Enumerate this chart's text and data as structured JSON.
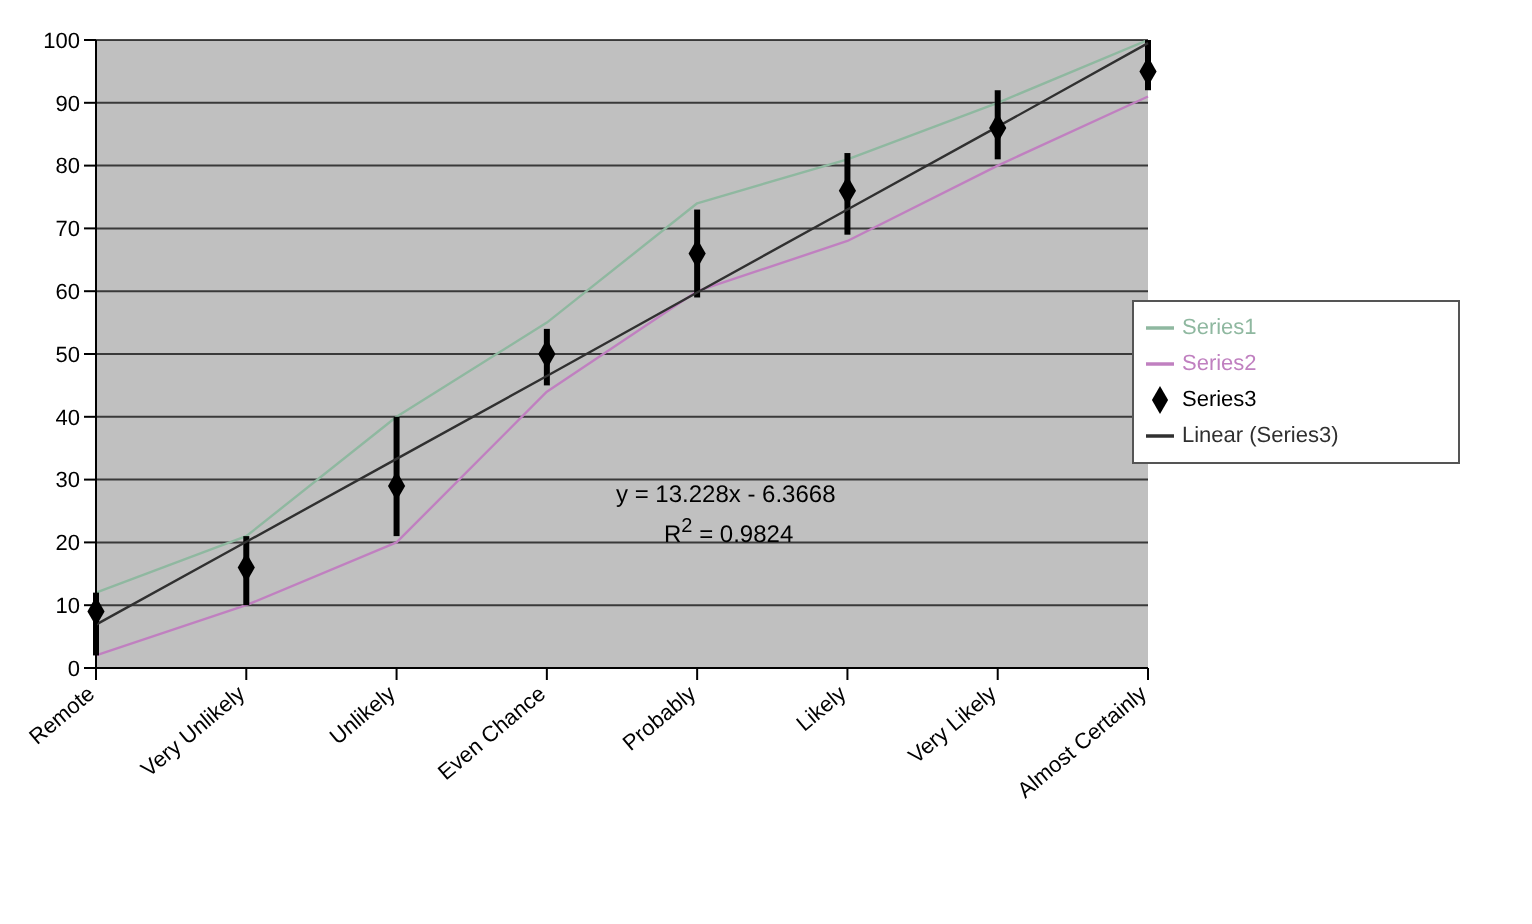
{
  "chart_data": {
    "type": "line",
    "categories": [
      "Remote",
      "Very Unlikely",
      "Unlikely",
      "Even Chance",
      "Probably",
      "Likely",
      "Very Likely",
      "Almost Certainly"
    ],
    "series": [
      {
        "name": "Series1",
        "color": "#8fb8a0",
        "values": [
          12,
          21,
          40,
          55,
          74,
          81,
          90,
          100
        ]
      },
      {
        "name": "Series2",
        "color": "#c080c0",
        "values": [
          2,
          10,
          20,
          44,
          60,
          68,
          80,
          91
        ]
      },
      {
        "name": "Series3",
        "type": "scatter",
        "marker": "diamond",
        "color": "#000000",
        "values": [
          9,
          16,
          29,
          50,
          66,
          76,
          86,
          95
        ],
        "errors": [
          [
            2,
            12
          ],
          [
            10,
            21
          ],
          [
            21,
            40
          ],
          [
            45,
            54
          ],
          [
            59,
            73
          ],
          [
            69,
            82
          ],
          [
            81,
            92
          ],
          [
            92,
            100
          ]
        ]
      },
      {
        "name": "Linear (Series3)",
        "color": "#303030",
        "values": [
          6.9,
          20.1,
          33.3,
          46.5,
          59.8,
          73.0,
          86.2,
          99.5
        ]
      }
    ],
    "ylim": [
      0,
      100
    ],
    "yticks": [
      0,
      10,
      20,
      30,
      40,
      50,
      60,
      70,
      80,
      90,
      100
    ],
    "grid": "y",
    "legend": "right",
    "marker": "none",
    "annotations": [
      "y = 13.228x - 6.3668",
      "R$^{2}$ = 0.9824"
    ]
  }
}
